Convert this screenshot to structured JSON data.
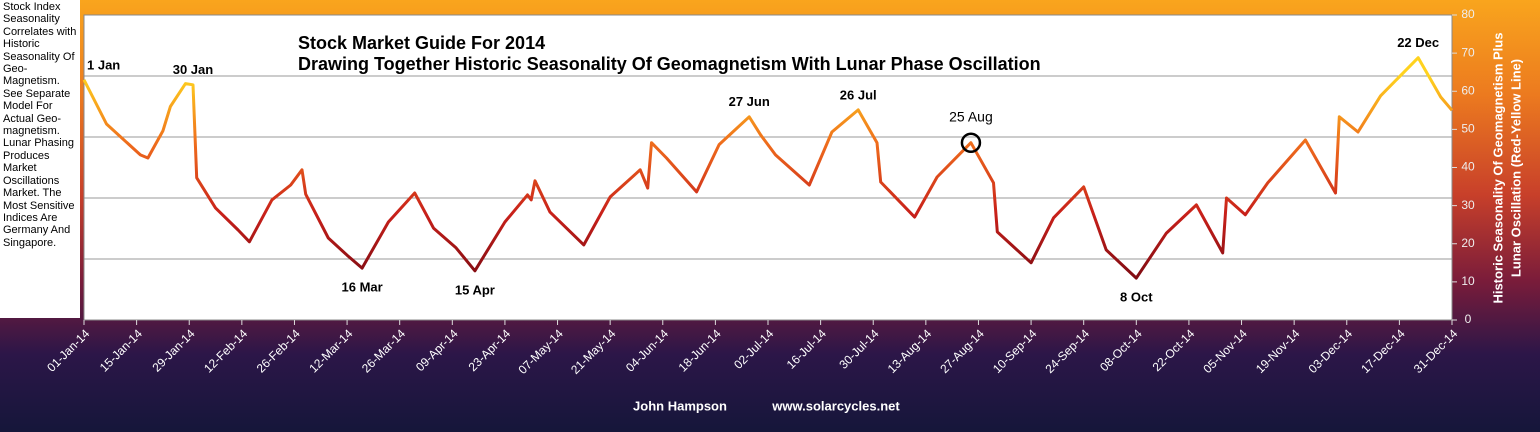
{
  "chart_data": {
    "type": "line",
    "title": [
      "Stock Market Guide For 2014",
      "Drawing Together Historic Seasonality Of Geomagnetism With Lunar Phase Oscillation"
    ],
    "side_note": "Stock Index Seasonality Correlates with Historic Seasonality Of Geo-Magnetism. See Separate Model For Actual Geo-magnetism. Lunar Phasing Produces Market Oscillations Market. The Most Sensitive Indices Are Germany And Singapore.",
    "ylabel": [
      "Historic Seasonality  Of Geomagnetism Plus",
      "Lunar Oscillation (Red-Yellow Line)"
    ],
    "footer": [
      "John Hampson",
      "www.solarcycles.net"
    ],
    "x": [
      "2014-01-01",
      "2014-01-07",
      "2014-01-16",
      "2014-01-18",
      "2014-01-22",
      "2014-01-24",
      "2014-01-28",
      "2014-01-30",
      "2014-01-31",
      "2014-02-05",
      "2014-02-11",
      "2014-02-14",
      "2014-02-20",
      "2014-02-25",
      "2014-02-28",
      "2014-03-01",
      "2014-03-07",
      "2014-03-12",
      "2014-03-16",
      "2014-03-23",
      "2014-03-30",
      "2014-04-04",
      "2014-04-10",
      "2014-04-15",
      "2014-04-23",
      "2014-04-29",
      "2014-04-30",
      "2014-05-01",
      "2014-05-05",
      "2014-05-14",
      "2014-05-21",
      "2014-05-29",
      "2014-05-31",
      "2014-06-01",
      "2014-06-05",
      "2014-06-13",
      "2014-06-19",
      "2014-06-27",
      "2014-06-30",
      "2014-07-04",
      "2014-07-13",
      "2014-07-19",
      "2014-07-26",
      "2014-07-31",
      "2014-08-01",
      "2014-08-10",
      "2014-08-16",
      "2014-08-25",
      "2014-08-31",
      "2014-09-01",
      "2014-09-10",
      "2014-09-16",
      "2014-09-24",
      "2014-09-30",
      "2014-10-08",
      "2014-10-16",
      "2014-10-24",
      "2014-10-31",
      "2014-11-01",
      "2014-11-06",
      "2014-11-12",
      "2014-11-22",
      "2014-11-30",
      "2014-12-01",
      "2014-12-06",
      "2014-12-12",
      "2014-12-22",
      "2014-12-28",
      "2014-12-31"
    ],
    "series": [
      {
        "gradient": [
          "#7a0a12",
          "#c8201a",
          "#ee6a1c",
          "#ffd21e"
        ],
        "values": [
          63,
          51.4,
          43.3,
          42.5,
          49.6,
          56,
          62,
          61.7,
          37.3,
          29.4,
          23.6,
          20.5,
          31.5,
          35.4,
          39.4,
          33,
          21.5,
          17,
          13.6,
          25.7,
          33.3,
          24.1,
          18.9,
          12.9,
          25.7,
          32.8,
          31.5,
          36.5,
          28.3,
          19.7,
          32.3,
          39.4,
          34.6,
          46.5,
          42.5,
          33.6,
          46,
          53.3,
          48.6,
          43.3,
          35.4,
          49.3,
          55.1,
          46.5,
          36.2,
          27,
          37.5,
          46.5,
          36,
          23.1,
          15,
          26.8,
          34.9,
          18.4,
          11,
          22.8,
          30.2,
          17.6,
          32,
          27.6,
          36,
          47.2,
          33.3,
          53.3,
          49.3,
          58.8,
          68.8,
          58.5,
          55
        ]
      }
    ],
    "annotations": [
      {
        "text": "1 Jan",
        "x": "2014-01-01",
        "position": "above"
      },
      {
        "text": "30 Jan",
        "x": "2014-01-30",
        "position": "above"
      },
      {
        "text": "16 Mar",
        "x": "2014-03-16",
        "position": "below"
      },
      {
        "text": "15 Apr",
        "x": "2014-04-15",
        "position": "below"
      },
      {
        "text": "27 Jun",
        "x": "2014-06-27",
        "position": "above"
      },
      {
        "text": "26 Jul",
        "x": "2014-07-26",
        "position": "above"
      },
      {
        "text": "25 Aug",
        "x": "2014-08-25",
        "position": "above",
        "circle": true
      },
      {
        "text": "8 Oct",
        "x": "2014-10-08",
        "position": "below"
      },
      {
        "text": "22 Dec",
        "x": "2014-12-22",
        "position": "above"
      }
    ],
    "xlim": [
      "2014-01-01",
      "2014-12-31"
    ],
    "xticks": [
      {
        "value": "2014-01-01",
        "label": "01-Jan-14"
      },
      {
        "value": "2014-01-15",
        "label": "15-Jan-14"
      },
      {
        "value": "2014-01-29",
        "label": "29-Jan-14"
      },
      {
        "value": "2014-02-12",
        "label": "12-Feb-14"
      },
      {
        "value": "2014-02-26",
        "label": "26-Feb-14"
      },
      {
        "value": "2014-03-12",
        "label": "12-Mar-14"
      },
      {
        "value": "2014-03-26",
        "label": "26-Mar-14"
      },
      {
        "value": "2014-04-09",
        "label": "09-Apr-14"
      },
      {
        "value": "2014-04-23",
        "label": "23-Apr-14"
      },
      {
        "value": "2014-05-07",
        "label": "07-May-14"
      },
      {
        "value": "2014-05-21",
        "label": "21-May-14"
      },
      {
        "value": "2014-06-04",
        "label": "04-Jun-14"
      },
      {
        "value": "2014-06-18",
        "label": "18-Jun-14"
      },
      {
        "value": "2014-07-02",
        "label": "02-Jul-14"
      },
      {
        "value": "2014-07-16",
        "label": "16-Jul-14"
      },
      {
        "value": "2014-07-30",
        "label": "30-Jul-14"
      },
      {
        "value": "2014-08-13",
        "label": "13-Aug-14"
      },
      {
        "value": "2014-08-27",
        "label": "27-Aug-14"
      },
      {
        "value": "2014-09-10",
        "label": "10-Sep-14"
      },
      {
        "value": "2014-09-24",
        "label": "24-Sep-14"
      },
      {
        "value": "2014-10-08",
        "label": "08-Oct-14"
      },
      {
        "value": "2014-10-22",
        "label": "22-Oct-14"
      },
      {
        "value": "2014-11-05",
        "label": "05-Nov-14"
      },
      {
        "value": "2014-11-19",
        "label": "19-Nov-14"
      },
      {
        "value": "2014-12-03",
        "label": "03-Dec-14"
      },
      {
        "value": "2014-12-17",
        "label": "17-Dec-14"
      },
      {
        "value": "2014-12-31",
        "label": "31-Dec-14"
      }
    ],
    "ylim": [
      0,
      80
    ],
    "yticks": [
      0,
      10,
      20,
      30,
      40,
      50,
      60,
      70,
      80
    ],
    "ygrid": [
      16,
      32,
      48,
      64
    ],
    "y_axis_side": "right"
  }
}
